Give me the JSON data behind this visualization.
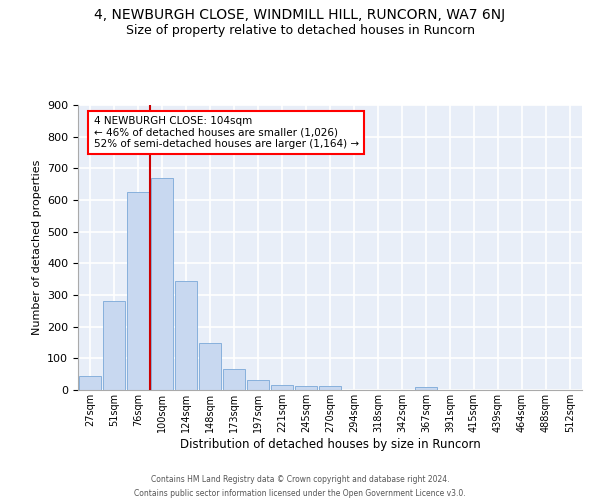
{
  "title": "4, NEWBURGH CLOSE, WINDMILL HILL, RUNCORN, WA7 6NJ",
  "subtitle": "Size of property relative to detached houses in Runcorn",
  "xlabel": "Distribution of detached houses by size in Runcorn",
  "ylabel": "Number of detached properties",
  "bar_color": "#c8d8f0",
  "bar_edge_color": "#7aa8d8",
  "background_color": "#e8eef8",
  "grid_color": "#ffffff",
  "categories": [
    "27sqm",
    "51sqm",
    "76sqm",
    "100sqm",
    "124sqm",
    "148sqm",
    "173sqm",
    "197sqm",
    "221sqm",
    "245sqm",
    "270sqm",
    "294sqm",
    "318sqm",
    "342sqm",
    "367sqm",
    "391sqm",
    "415sqm",
    "439sqm",
    "464sqm",
    "488sqm",
    "512sqm"
  ],
  "values": [
    45,
    280,
    625,
    670,
    343,
    148,
    65,
    33,
    17,
    12,
    12,
    0,
    0,
    0,
    10,
    0,
    0,
    0,
    0,
    0,
    0
  ],
  "ylim": [
    0,
    900
  ],
  "yticks": [
    0,
    100,
    200,
    300,
    400,
    500,
    600,
    700,
    800,
    900
  ],
  "vline_color": "#cc0000",
  "annotation_line1": "4 NEWBURGH CLOSE: 104sqm",
  "annotation_line2": "← 46% of detached houses are smaller (1,026)",
  "annotation_line3": "52% of semi-detached houses are larger (1,164) →",
  "footer1": "Contains HM Land Registry data © Crown copyright and database right 2024.",
  "footer2": "Contains public sector information licensed under the Open Government Licence v3.0."
}
